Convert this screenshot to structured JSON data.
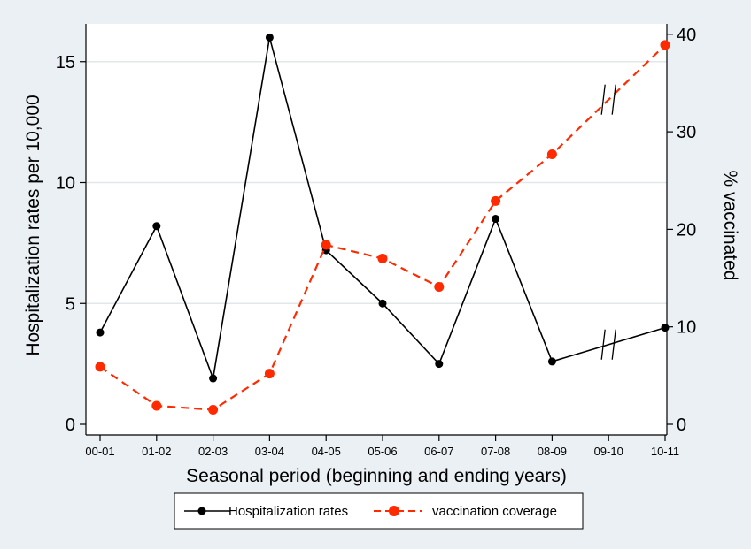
{
  "chart_data": {
    "type": "line",
    "xlabel": "Seasonal period (beginning and ending years)",
    "ylabel_left": "Hospitalization rates per 10,000",
    "ylabel_right": "% vaccinated",
    "categories": [
      "00-01",
      "01-02",
      "02-03",
      "03-04",
      "04-05",
      "05-06",
      "06-07",
      "07-08",
      "08-09",
      "09-10",
      "10-11"
    ],
    "ylim_left": [
      0,
      16
    ],
    "yticks_left": [
      0,
      5,
      10,
      15
    ],
    "ylim_right": [
      0,
      40
    ],
    "yticks_right": [
      0,
      10,
      20,
      30,
      40
    ],
    "grid": true,
    "legend_position": "bottom",
    "axis_breaks": [
      "09-10"
    ],
    "series": [
      {
        "name": "Hospitalization rates",
        "axis": "left",
        "color": "#000000",
        "style": "solid",
        "x": [
          "00-01",
          "01-02",
          "02-03",
          "03-04",
          "04-05",
          "05-06",
          "06-07",
          "07-08",
          "08-09",
          "10-11"
        ],
        "values": [
          3.8,
          8.2,
          1.9,
          16.0,
          7.2,
          5.0,
          2.5,
          8.5,
          2.6,
          4.0
        ]
      },
      {
        "name": "vaccination coverage",
        "axis": "right",
        "color": "#ff2a00",
        "style": "dashed",
        "x": [
          "00-01",
          "01-02",
          "02-03",
          "03-04",
          "04-05",
          "05-06",
          "06-07",
          "07-08",
          "08-09",
          "10-11"
        ],
        "values": [
          5.9,
          1.9,
          1.5,
          5.2,
          18.4,
          17.0,
          14.1,
          22.9,
          27.7,
          38.9
        ]
      }
    ]
  }
}
